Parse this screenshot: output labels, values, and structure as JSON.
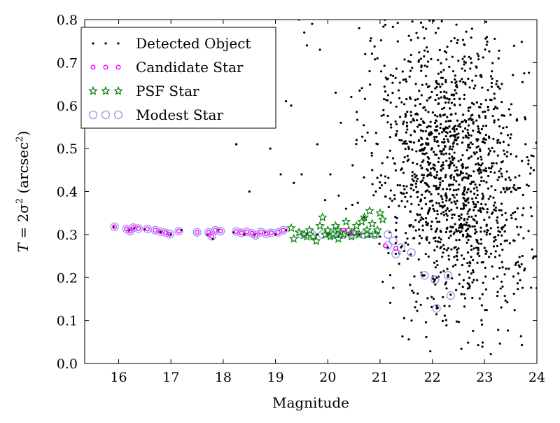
{
  "chart_data": {
    "type": "scatter",
    "title": "",
    "xlabel": "Magnitude",
    "ylabel": {
      "prefix": "T",
      "equals": " = 2σ",
      "sup": "2",
      "unit_open": " (arcsec",
      "unit_sup": "2",
      "unit_close": ")"
    },
    "xlim": [
      15.35,
      24.0
    ],
    "ylim": [
      0.0,
      0.8
    ],
    "x_ticks": [
      16,
      17,
      18,
      19,
      20,
      21,
      22,
      23,
      24
    ],
    "y_ticks": [
      0.0,
      0.1,
      0.2,
      0.3,
      0.4,
      0.5,
      0.6,
      0.7,
      0.8
    ],
    "x_tick_labels": [
      "16",
      "17",
      "18",
      "19",
      "20",
      "21",
      "22",
      "23",
      "24"
    ],
    "y_tick_labels": [
      "0.0",
      "0.1",
      "0.2",
      "0.3",
      "0.4",
      "0.5",
      "0.6",
      "0.7",
      "0.8"
    ],
    "grid": false,
    "legend_position": "top-left",
    "series": [
      {
        "name": "Detected Object",
        "marker": "dot",
        "color": "#000000",
        "points": [
          [
            15.9,
            0.318
          ],
          [
            16.2,
            0.31
          ],
          [
            16.3,
            0.315
          ],
          [
            16.5,
            0.312
          ],
          [
            16.8,
            0.306
          ],
          [
            17.0,
            0.3
          ],
          [
            17.2,
            0.31
          ],
          [
            17.7,
            0.3
          ],
          [
            17.8,
            0.29
          ],
          [
            17.9,
            0.31
          ],
          [
            18.2,
            0.305
          ],
          [
            18.4,
            0.3
          ],
          [
            18.6,
            0.3
          ],
          [
            18.8,
            0.305
          ],
          [
            19.0,
            0.3
          ],
          [
            19.2,
            0.31
          ],
          [
            19.6,
            0.3
          ],
          [
            19.8,
            0.3
          ],
          [
            20.0,
            0.3
          ],
          [
            20.2,
            0.295
          ],
          [
            20.4,
            0.3
          ],
          [
            20.6,
            0.3
          ],
          [
            20.8,
            0.295
          ],
          [
            21.0,
            0.295
          ],
          [
            21.15,
            0.27
          ],
          [
            21.3,
            0.28
          ],
          [
            21.3,
            0.255
          ],
          [
            21.4,
            0.27
          ],
          [
            21.85,
            0.205
          ],
          [
            22.05,
            0.195
          ],
          [
            22.3,
            0.205
          ],
          [
            22.35,
            0.16
          ],
          [
            22.1,
            0.13
          ],
          [
            18.25,
            0.51
          ],
          [
            18.25,
            0.51
          ],
          [
            18.5,
            0.4
          ],
          [
            18.7,
            0.57
          ],
          [
            18.9,
            0.5
          ],
          [
            19.1,
            0.44
          ],
          [
            19.2,
            0.61
          ],
          [
            19.3,
            0.6
          ],
          [
            19.35,
            0.42
          ],
          [
            19.5,
            0.44
          ],
          [
            19.45,
            0.8
          ],
          [
            19.55,
            0.77
          ],
          [
            19.6,
            0.74
          ],
          [
            19.7,
            0.79
          ],
          [
            19.8,
            0.51
          ],
          [
            19.85,
            0.73
          ],
          [
            19.95,
            0.38
          ],
          [
            20.05,
            0.44
          ],
          [
            20.15,
            0.63
          ],
          [
            20.25,
            0.56
          ],
          [
            20.35,
            0.36
          ],
          [
            20.45,
            0.62
          ],
          [
            20.55,
            0.52
          ],
          [
            20.6,
            0.78
          ],
          [
            20.7,
            0.34
          ],
          [
            20.8,
            0.68
          ],
          [
            20.85,
            0.45
          ],
          [
            20.95,
            0.71
          ],
          [
            21.05,
            0.19
          ],
          [
            21.1,
            0.42
          ]
        ]
      },
      {
        "name": "Candidate Star",
        "marker": "small-circle",
        "color": "#ff00ff",
        "points": [
          [
            15.92,
            0.318
          ],
          [
            16.15,
            0.313
          ],
          [
            16.22,
            0.308
          ],
          [
            16.28,
            0.316
          ],
          [
            16.38,
            0.314
          ],
          [
            16.55,
            0.313
          ],
          [
            16.7,
            0.31
          ],
          [
            16.8,
            0.307
          ],
          [
            16.9,
            0.304
          ],
          [
            16.98,
            0.301
          ],
          [
            17.15,
            0.308
          ],
          [
            17.5,
            0.305
          ],
          [
            17.72,
            0.305
          ],
          [
            17.78,
            0.296
          ],
          [
            17.85,
            0.31
          ],
          [
            17.95,
            0.308
          ],
          [
            18.25,
            0.307
          ],
          [
            18.35,
            0.304
          ],
          [
            18.45,
            0.306
          ],
          [
            18.55,
            0.303
          ],
          [
            18.62,
            0.298
          ],
          [
            18.72,
            0.306
          ],
          [
            18.82,
            0.302
          ],
          [
            18.92,
            0.304
          ],
          [
            19.05,
            0.305
          ],
          [
            19.15,
            0.31
          ],
          [
            20.3,
            0.31
          ],
          [
            20.45,
            0.305
          ],
          [
            21.1,
            0.274
          ],
          [
            21.3,
            0.268
          ]
        ]
      },
      {
        "name": "PSF Star",
        "marker": "star",
        "color": "#008000",
        "points": [
          [
            19.3,
            0.315
          ],
          [
            19.35,
            0.29
          ],
          [
            19.45,
            0.305
          ],
          [
            19.55,
            0.3
          ],
          [
            19.65,
            0.31
          ],
          [
            19.72,
            0.295
          ],
          [
            19.78,
            0.285
          ],
          [
            19.85,
            0.32
          ],
          [
            19.9,
            0.34
          ],
          [
            19.95,
            0.3
          ],
          [
            20.0,
            0.31
          ],
          [
            20.05,
            0.295
          ],
          [
            20.1,
            0.3
          ],
          [
            20.15,
            0.32
          ],
          [
            20.2,
            0.29
          ],
          [
            20.25,
            0.305
          ],
          [
            20.3,
            0.3
          ],
          [
            20.35,
            0.33
          ],
          [
            20.4,
            0.31
          ],
          [
            20.45,
            0.295
          ],
          [
            20.5,
            0.305
          ],
          [
            20.55,
            0.32
          ],
          [
            20.6,
            0.3
          ],
          [
            20.65,
            0.33
          ],
          [
            20.7,
            0.34
          ],
          [
            20.75,
            0.31
          ],
          [
            20.8,
            0.355
          ],
          [
            20.85,
            0.325
          ],
          [
            20.9,
            0.3
          ],
          [
            20.95,
            0.31
          ],
          [
            21.0,
            0.35
          ],
          [
            21.05,
            0.335
          ],
          [
            20.75,
            0.3
          ],
          [
            20.2,
            0.31
          ],
          [
            19.6,
            0.295
          ]
        ]
      },
      {
        "name": "Modest Star",
        "marker": "large-circle",
        "color": "#9999ee",
        "points": [
          [
            15.92,
            0.318
          ],
          [
            16.15,
            0.313
          ],
          [
            16.22,
            0.308
          ],
          [
            16.28,
            0.316
          ],
          [
            16.38,
            0.314
          ],
          [
            16.55,
            0.313
          ],
          [
            16.7,
            0.31
          ],
          [
            16.8,
            0.307
          ],
          [
            16.9,
            0.304
          ],
          [
            16.98,
            0.301
          ],
          [
            17.15,
            0.308
          ],
          [
            17.5,
            0.305
          ],
          [
            17.72,
            0.305
          ],
          [
            17.78,
            0.296
          ],
          [
            17.85,
            0.31
          ],
          [
            17.95,
            0.308
          ],
          [
            18.25,
            0.307
          ],
          [
            18.35,
            0.304
          ],
          [
            18.45,
            0.306
          ],
          [
            18.55,
            0.303
          ],
          [
            18.62,
            0.298
          ],
          [
            18.72,
            0.306
          ],
          [
            18.82,
            0.302
          ],
          [
            18.92,
            0.304
          ],
          [
            19.05,
            0.305
          ],
          [
            19.15,
            0.31
          ],
          [
            19.5,
            0.3
          ],
          [
            19.7,
            0.3
          ],
          [
            19.9,
            0.3
          ],
          [
            20.1,
            0.3
          ],
          [
            20.3,
            0.3
          ],
          [
            20.5,
            0.3
          ],
          [
            20.7,
            0.3
          ],
          [
            20.9,
            0.3
          ],
          [
            21.15,
            0.3
          ],
          [
            21.25,
            0.285
          ],
          [
            21.15,
            0.275
          ],
          [
            21.3,
            0.255
          ],
          [
            21.4,
            0.27
          ],
          [
            21.6,
            0.258
          ],
          [
            21.85,
            0.205
          ],
          [
            22.05,
            0.195
          ],
          [
            22.3,
            0.205
          ],
          [
            22.35,
            0.158
          ],
          [
            22.08,
            0.128
          ]
        ]
      }
    ],
    "dense_cloud": {
      "series": "Detected Object",
      "description_free": true,
      "count": 1500,
      "x_center": 22.4,
      "x_spread": 0.75,
      "y_center": 0.45,
      "y_spread": 0.17,
      "seed": 7
    }
  }
}
